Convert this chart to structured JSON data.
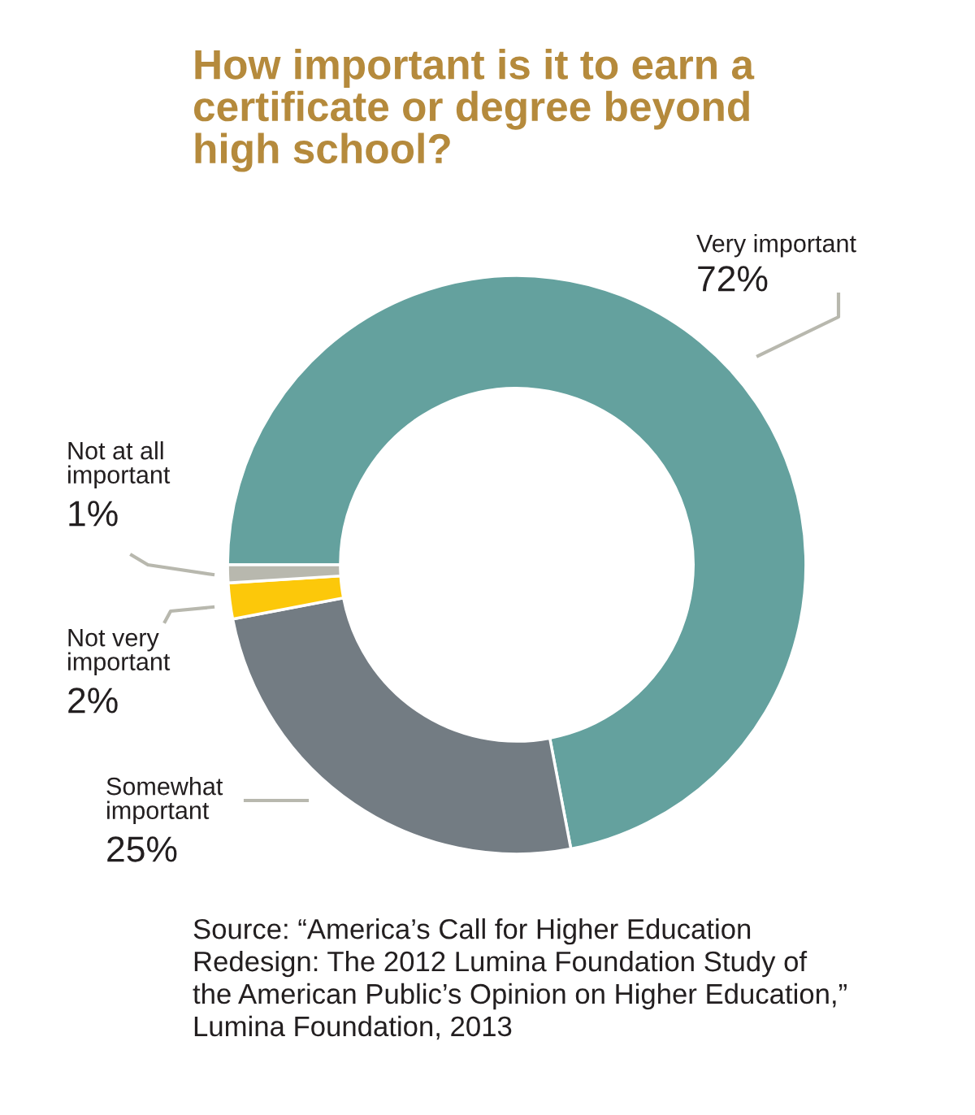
{
  "chart_data": {
    "type": "donut",
    "title": "How important is it to earn a\ncertificate or degree beyond\nhigh school?",
    "categories": [
      "Very important",
      "Somewhat\nimportant",
      "Not very\nimportant",
      "Not at all\nimportant"
    ],
    "values": [
      72,
      25,
      2,
      1
    ],
    "value_labels": [
      "72%",
      "25%",
      "2%",
      "1%"
    ],
    "colors": [
      "#64a19e",
      "#737c83",
      "#fcc80a",
      "#b8b8ae"
    ],
    "annotations": [
      "Source: “America’s Call for Higher Education\nRedesign: The 2012 Lumina Foundation Study of\nthe American Public’s Opinion on Higher Education,”\nLumina Foundation, 2013"
    ],
    "legend": false
  }
}
